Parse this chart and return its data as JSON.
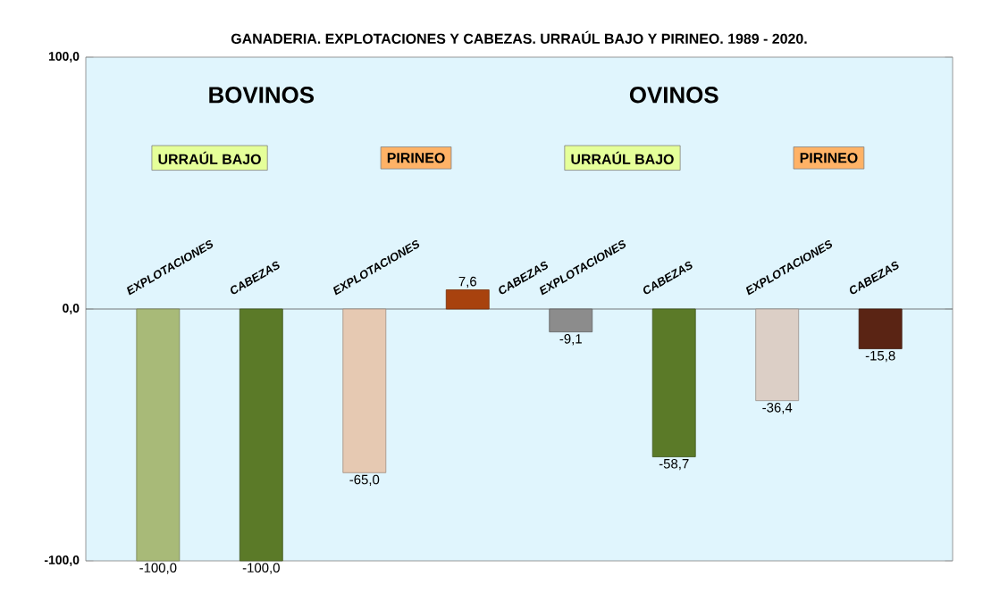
{
  "chart_data": {
    "type": "bar",
    "title": "GANADERIA. EXPLOTACIONES Y CABEZAS. URRAÚL BAJO Y PIRINEO. 1989 - 2020.",
    "categories": [
      "EXPLOTACIONES",
      "CABEZAS",
      "EXPLOTACIONES",
      "CABEZAS",
      "EXPLOTACIONES",
      "CABEZAS",
      "EXPLOTACIONES",
      "CABEZAS"
    ],
    "values": [
      -100.0,
      -100.0,
      -65.0,
      7.6,
      -9.1,
      -58.7,
      -36.4,
      -15.8
    ],
    "value_labels": [
      "-100,0",
      "-100,0",
      "-65,0",
      "7,6",
      "-9,1",
      "-58,7",
      "-36,4",
      "-15,8"
    ],
    "colors": [
      "#a8ba78",
      "#5b7a28",
      "#e6c9b2",
      "#a8420e",
      "#8c8c8c",
      "#5b7a28",
      "#dccfc6",
      "#5a2414"
    ],
    "ylim": [
      -100,
      100
    ],
    "yticks": [
      {
        "value": -100,
        "label": "-100,0"
      },
      {
        "value": 0,
        "label": "0,0"
      },
      {
        "value": 100,
        "label": "100,0"
      }
    ],
    "annotations": [
      "BOVINOS",
      "OVINOS",
      "URRAÚL BAJO",
      "PIRINEO",
      "URRAÚL BAJO",
      "PIRINEO"
    ],
    "grid": false
  }
}
